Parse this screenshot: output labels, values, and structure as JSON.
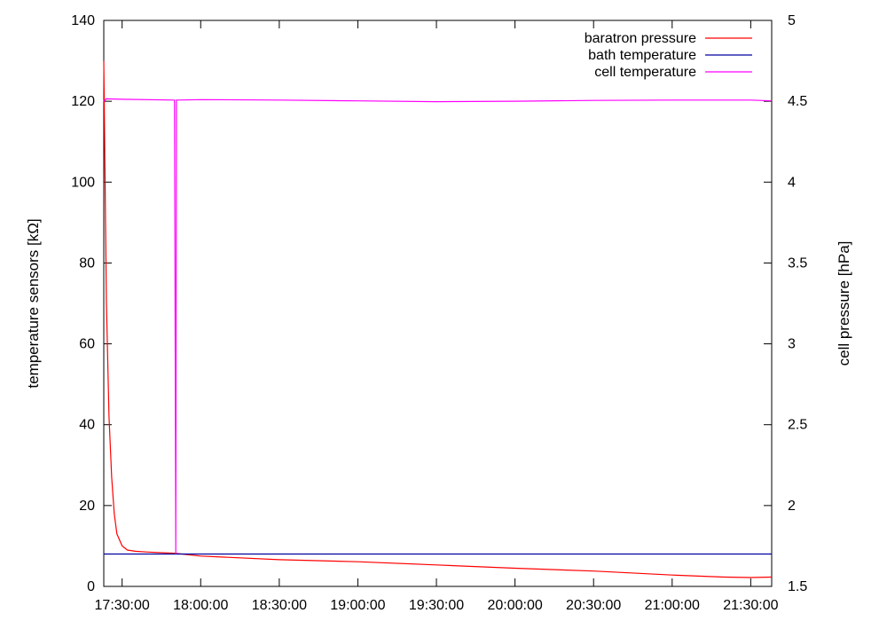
{
  "chart_data": {
    "type": "line",
    "title": "",
    "ylabel": "temperature sensors [kΩ]",
    "y2label": "cell pressure [hPa]",
    "xlabel": "",
    "xlim": [
      "17:23:00",
      "21:38:00"
    ],
    "ylim": [
      0,
      140
    ],
    "y2lim": [
      1.5,
      5
    ],
    "yticks": [
      0,
      20,
      40,
      60,
      80,
      100,
      120,
      140
    ],
    "y2ticks": [
      "1.5",
      "2",
      "2.5",
      "3",
      "3.5",
      "4",
      "4.5",
      "5"
    ],
    "xticks": [
      "17:30:00",
      "18:00:00",
      "18:30:00",
      "19:00:00",
      "19:30:00",
      "20:00:00",
      "20:30:00",
      "21:00:00",
      "21:30:00"
    ],
    "grid": false,
    "legend_position": "top-right",
    "series": [
      {
        "name": "baratron pressure",
        "axis": "left",
        "color": "#ff0000",
        "x": [
          "17:23:00",
          "17:24:00",
          "17:25:00",
          "17:26:00",
          "17:27:00",
          "17:28:00",
          "17:30:00",
          "17:32:00",
          "17:35:00",
          "17:40:00",
          "17:50:00",
          "18:00:00",
          "18:30:00",
          "19:00:00",
          "19:30:00",
          "20:00:00",
          "20:30:00",
          "21:00:00",
          "21:20:00",
          "21:30:00",
          "21:38:00"
        ],
        "y": [
          130,
          70,
          42,
          27,
          18,
          13,
          10,
          9,
          8.7,
          8.5,
          8.2,
          7.5,
          6.6,
          6.1,
          5.3,
          4.5,
          3.8,
          2.8,
          2.3,
          2.2,
          2.3
        ]
      },
      {
        "name": "bath temperature",
        "axis": "left",
        "color": "#0000a0",
        "x": [
          "17:23:00",
          "21:38:00"
        ],
        "y": [
          8,
          8
        ]
      },
      {
        "name": "cell temperature",
        "axis": "left",
        "color": "#ff00ff",
        "x": [
          "17:23:00",
          "17:24:00",
          "17:30:00",
          "17:50:00",
          "17:50:30",
          "17:50:45",
          "17:51:00",
          "18:00:00",
          "18:30:00",
          "19:00:00",
          "19:30:00",
          "20:00:00",
          "20:30:00",
          "21:00:00",
          "21:30:00",
          "21:38:00"
        ],
        "y": [
          120,
          120.6,
          120.5,
          120.3,
          8,
          120.3,
          120.3,
          120.4,
          120.3,
          120.1,
          119.9,
          120.0,
          120.2,
          120.3,
          120.3,
          120.1
        ]
      }
    ]
  }
}
